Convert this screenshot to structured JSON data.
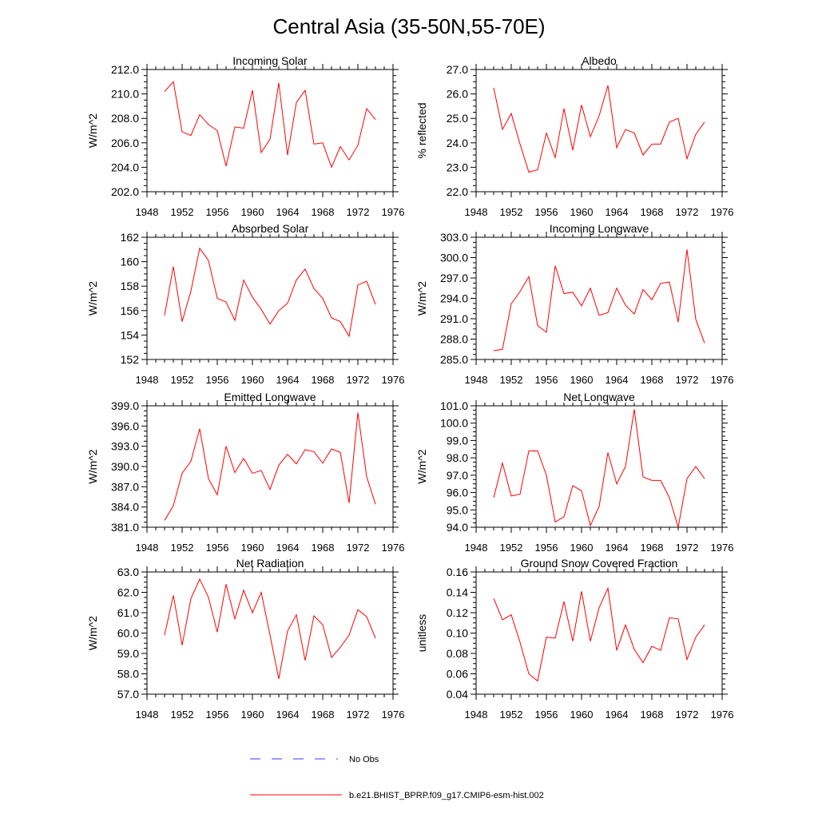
{
  "figure": {
    "title": "Central Asia (35-50N,55-70E)",
    "legend": {
      "obs_label": "No Obs",
      "model_label": "b.e21.BHIST_BPRP.f09_g17.CMIP6-esm-hist.002"
    }
  },
  "colors": {
    "model": "#ff0000",
    "obs": "#3a3aff",
    "axis": "#000000"
  },
  "chart_data": [
    {
      "type": "line",
      "title": "Incoming Solar",
      "ylabel": "W/m^2",
      "xlim": [
        1948,
        1976
      ],
      "ylim": [
        202,
        212
      ],
      "xticks": [
        1948,
        1952,
        1956,
        1960,
        1964,
        1968,
        1972,
        1976
      ],
      "yticks": [
        202,
        204,
        206,
        208,
        210,
        212
      ],
      "ydecimals": 1,
      "x": [
        1950,
        1951,
        1952,
        1953,
        1954,
        1955,
        1956,
        1957,
        1958,
        1959,
        1960,
        1961,
        1962,
        1963,
        1964,
        1965,
        1966,
        1967,
        1968,
        1969,
        1970,
        1971,
        1972,
        1973,
        1974
      ],
      "series": [
        {
          "name": "b.e21.BHIST_BPRP.f09_g17.CMIP6-esm-hist.002",
          "values": [
            210.2,
            211.0,
            206.9,
            206.6,
            208.3,
            207.5,
            207.0,
            204.1,
            207.3,
            207.2,
            210.3,
            205.2,
            206.3,
            210.9,
            205.0,
            209.3,
            210.3,
            205.9,
            206.0,
            204.0,
            205.7,
            204.6,
            205.8,
            208.8,
            207.9
          ]
        }
      ]
    },
    {
      "type": "line",
      "title": "Albedo",
      "ylabel": "% reflected",
      "xlim": [
        1948,
        1976
      ],
      "ylim": [
        22,
        27
      ],
      "xticks": [
        1948,
        1952,
        1956,
        1960,
        1964,
        1968,
        1972,
        1976
      ],
      "yticks": [
        22,
        23,
        24,
        25,
        26,
        27
      ],
      "ydecimals": 1,
      "x": [
        1950,
        1951,
        1952,
        1953,
        1954,
        1955,
        1956,
        1957,
        1958,
        1959,
        1960,
        1961,
        1962,
        1963,
        1964,
        1965,
        1966,
        1967,
        1968,
        1969,
        1970,
        1971,
        1972,
        1973,
        1974
      ],
      "series": [
        {
          "name": "b.e21.BHIST_BPRP.f09_g17.CMIP6-esm-hist.002",
          "values": [
            26.25,
            24.55,
            25.2,
            23.95,
            22.8,
            22.9,
            24.4,
            23.4,
            25.4,
            23.7,
            25.55,
            24.25,
            25.1,
            26.35,
            23.8,
            24.55,
            24.4,
            23.5,
            23.95,
            23.95,
            24.85,
            25.0,
            23.35,
            24.35,
            24.85
          ]
        }
      ]
    },
    {
      "type": "line",
      "title": "Absorbed Solar",
      "ylabel": "W/m^2",
      "xlim": [
        1948,
        1976
      ],
      "ylim": [
        152,
        162
      ],
      "xticks": [
        1948,
        1952,
        1956,
        1960,
        1964,
        1968,
        1972,
        1976
      ],
      "yticks": [
        152,
        154,
        156,
        158,
        160,
        162
      ],
      "ydecimals": 0,
      "x": [
        1950,
        1951,
        1952,
        1953,
        1954,
        1955,
        1956,
        1957,
        1958,
        1959,
        1960,
        1961,
        1962,
        1963,
        1964,
        1965,
        1966,
        1967,
        1968,
        1969,
        1970,
        1971,
        1972,
        1973,
        1974
      ],
      "series": [
        {
          "name": "b.e21.BHIST_BPRP.f09_g17.CMIP6-esm-hist.002",
          "values": [
            155.6,
            159.6,
            155.1,
            157.6,
            161.1,
            160.1,
            157.0,
            156.7,
            155.2,
            158.5,
            157.1,
            156.1,
            154.9,
            156.0,
            156.6,
            158.5,
            159.4,
            157.8,
            157.0,
            155.4,
            155.1,
            153.9,
            158.1,
            158.4,
            156.5
          ]
        }
      ]
    },
    {
      "type": "line",
      "title": "Incoming Longwave",
      "ylabel": "W/m^2",
      "xlim": [
        1948,
        1976
      ],
      "ylim": [
        285,
        303
      ],
      "xticks": [
        1948,
        1952,
        1956,
        1960,
        1964,
        1968,
        1972,
        1976
      ],
      "yticks": [
        285,
        288,
        291,
        294,
        297,
        300,
        303
      ],
      "ydecimals": 1,
      "x": [
        1950,
        1951,
        1952,
        1953,
        1954,
        1955,
        1956,
        1957,
        1958,
        1959,
        1960,
        1961,
        1962,
        1963,
        1964,
        1965,
        1966,
        1967,
        1968,
        1969,
        1970,
        1971,
        1972,
        1973,
        1974
      ],
      "series": [
        {
          "name": "b.e21.BHIST_BPRP.f09_g17.CMIP6-esm-hist.002",
          "values": [
            286.3,
            286.5,
            293.2,
            295.0,
            297.2,
            290.0,
            289.0,
            298.8,
            294.7,
            294.9,
            292.9,
            295.5,
            291.5,
            291.9,
            295.5,
            293.0,
            291.7,
            295.3,
            293.8,
            296.2,
            296.4,
            290.5,
            301.2,
            290.9,
            287.4
          ]
        }
      ]
    },
    {
      "type": "line",
      "title": "Emitted Longwave",
      "ylabel": "W/m^2",
      "xlim": [
        1948,
        1976
      ],
      "ylim": [
        381,
        399
      ],
      "xticks": [
        1948,
        1952,
        1956,
        1960,
        1964,
        1968,
        1972,
        1976
      ],
      "yticks": [
        381,
        384,
        387,
        390,
        393,
        396,
        399
      ],
      "ydecimals": 1,
      "x": [
        1950,
        1951,
        1952,
        1953,
        1954,
        1955,
        1956,
        1957,
        1958,
        1959,
        1960,
        1961,
        1962,
        1963,
        1964,
        1965,
        1966,
        1967,
        1968,
        1969,
        1970,
        1971,
        1972,
        1973,
        1974
      ],
      "series": [
        {
          "name": "b.e21.BHIST_BPRP.f09_g17.CMIP6-esm-hist.002",
          "values": [
            382.0,
            384.2,
            389.0,
            390.8,
            395.6,
            388.2,
            385.8,
            393.0,
            389.1,
            391.2,
            389.0,
            389.4,
            386.6,
            390.2,
            391.8,
            390.4,
            392.5,
            392.2,
            390.5,
            392.6,
            392.1,
            384.6,
            398.0,
            388.5,
            384.4
          ]
        }
      ]
    },
    {
      "type": "line",
      "title": "Net Longwave",
      "ylabel": "W/m^2",
      "xlim": [
        1948,
        1976
      ],
      "ylim": [
        94,
        101
      ],
      "xticks": [
        1948,
        1952,
        1956,
        1960,
        1964,
        1968,
        1972,
        1976
      ],
      "yticks": [
        94,
        95,
        96,
        97,
        98,
        99,
        100,
        101
      ],
      "ydecimals": 1,
      "x": [
        1950,
        1951,
        1952,
        1953,
        1954,
        1955,
        1956,
        1957,
        1958,
        1959,
        1960,
        1961,
        1962,
        1963,
        1964,
        1965,
        1966,
        1967,
        1968,
        1969,
        1970,
        1971,
        1972,
        1973,
        1974
      ],
      "series": [
        {
          "name": "b.e21.BHIST_BPRP.f09_g17.CMIP6-esm-hist.002",
          "values": [
            95.7,
            97.7,
            95.8,
            95.9,
            98.4,
            98.4,
            97.0,
            94.3,
            94.6,
            96.4,
            96.1,
            94.1,
            95.2,
            98.3,
            96.5,
            97.5,
            100.8,
            96.9,
            96.7,
            96.7,
            95.7,
            94.0,
            96.8,
            97.5,
            96.8
          ]
        }
      ]
    },
    {
      "type": "line",
      "title": "Net Radiation",
      "ylabel": "W/m^2",
      "xlim": [
        1948,
        1976
      ],
      "ylim": [
        57,
        63
      ],
      "xticks": [
        1948,
        1952,
        1956,
        1960,
        1964,
        1968,
        1972,
        1976
      ],
      "yticks": [
        57,
        58,
        59,
        60,
        61,
        62,
        63
      ],
      "ydecimals": 1,
      "x": [
        1950,
        1951,
        1952,
        1953,
        1954,
        1955,
        1956,
        1957,
        1958,
        1959,
        1960,
        1961,
        1962,
        1963,
        1964,
        1965,
        1966,
        1967,
        1968,
        1969,
        1970,
        1971,
        1972,
        1973,
        1974
      ],
      "series": [
        {
          "name": "b.e21.BHIST_BPRP.f09_g17.CMIP6-esm-hist.002",
          "values": [
            59.9,
            61.85,
            59.4,
            61.7,
            62.65,
            61.75,
            60.05,
            62.4,
            60.7,
            62.1,
            61.0,
            62.0,
            59.9,
            57.75,
            60.1,
            60.9,
            58.65,
            60.85,
            60.4,
            58.8,
            59.3,
            59.9,
            61.15,
            60.8,
            59.75
          ]
        }
      ]
    },
    {
      "type": "line",
      "title": "Ground Snow Covered Fraction",
      "ylabel": "unitless",
      "xlim": [
        1948,
        1976
      ],
      "ylim": [
        0.04,
        0.16
      ],
      "xticks": [
        1948,
        1952,
        1956,
        1960,
        1964,
        1968,
        1972,
        1976
      ],
      "yticks": [
        0.04,
        0.06,
        0.08,
        0.1,
        0.12,
        0.14,
        0.16
      ],
      "ydecimals": 2,
      "x": [
        1950,
        1951,
        1952,
        1953,
        1954,
        1955,
        1956,
        1957,
        1958,
        1959,
        1960,
        1961,
        1962,
        1963,
        1964,
        1965,
        1966,
        1967,
        1968,
        1969,
        1970,
        1971,
        1972,
        1973,
        1974
      ],
      "series": [
        {
          "name": "b.e21.BHIST_BPRP.f09_g17.CMIP6-esm-hist.002",
          "values": [
            0.134,
            0.113,
            0.118,
            0.091,
            0.06,
            0.053,
            0.096,
            0.095,
            0.131,
            0.092,
            0.141,
            0.092,
            0.125,
            0.144,
            0.083,
            0.108,
            0.084,
            0.071,
            0.087,
            0.083,
            0.115,
            0.114,
            0.074,
            0.096,
            0.108
          ]
        }
      ]
    }
  ]
}
